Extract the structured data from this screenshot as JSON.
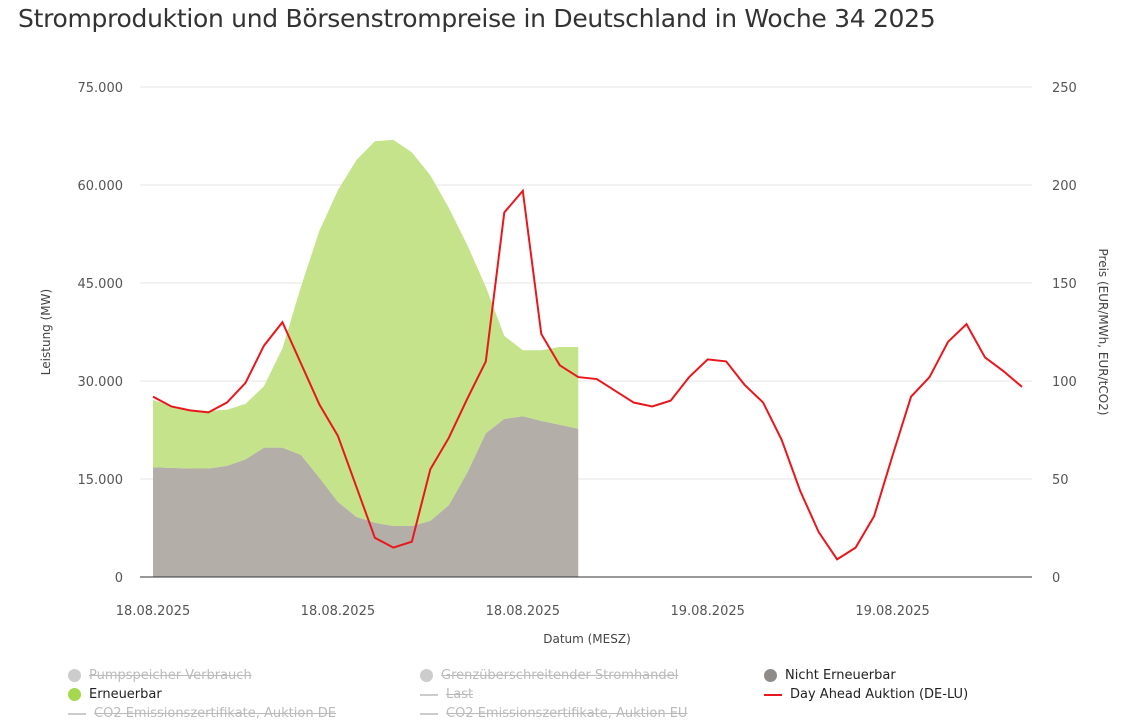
{
  "title": "Stromproduktion und Börsenstrompreise in Deutschland in Woche 34 2025",
  "chart_data": {
    "type": "area",
    "title": "Stromproduktion und Börsenstrompreise in Deutschland in Woche 34 2025",
    "xlabel": "Datum (MESZ)",
    "ylabel": "Leistung (MW)",
    "y2label": "Preis (EUR/MWh, EUR/tCO2)",
    "ylim": [
      0,
      75000
    ],
    "y2lim": [
      0,
      250
    ],
    "y_ticks": [
      "0",
      "15.000",
      "30.000",
      "45.000",
      "60.000",
      "75.000"
    ],
    "y_tick_values": [
      0,
      15000,
      30000,
      45000,
      60000,
      75000
    ],
    "y2_ticks": [
      "0",
      "50",
      "100",
      "150",
      "200",
      "250"
    ],
    "y2_tick_values": [
      0,
      50,
      100,
      150,
      200,
      250
    ],
    "x_hours_range": [
      0,
      47
    ],
    "x_ticks": [
      {
        "hour": 0,
        "label": "18.08.2025"
      },
      {
        "hour": 10,
        "label": "18.08.2025"
      },
      {
        "hour": 20,
        "label": "18.08.2025"
      },
      {
        "hour": 30,
        "label": "19.08.2025"
      },
      {
        "hour": 40,
        "label": "19.08.2025"
      }
    ],
    "grid": true,
    "legend_position": "bottom",
    "series": [
      {
        "name": "Nicht Erneuerbar",
        "kind": "area",
        "axis": "left",
        "color": "#b4aea9",
        "values": [
          16800,
          16700,
          16600,
          16600,
          17000,
          18000,
          19800,
          19800,
          18700,
          15200,
          11500,
          9200,
          8300,
          7800,
          7800,
          8600,
          11000,
          16000,
          22000,
          24200,
          24600,
          23900,
          23300,
          22700
        ]
      },
      {
        "name": "Erneuerbar",
        "kind": "area",
        "axis": "left",
        "color": "#c4e38a",
        "values": [
          10300,
          9500,
          9000,
          8800,
          8600,
          8500,
          9400,
          15200,
          25700,
          37800,
          47700,
          54600,
          58400,
          59100,
          57200,
          52900,
          45500,
          34800,
          22400,
          12700,
          10100,
          10800,
          11900,
          12500
        ]
      },
      {
        "name": "Day Ahead Auktion (DE-LU)",
        "kind": "line",
        "axis": "right",
        "color": "#e8171d",
        "values": [
          92,
          87,
          85,
          84,
          89,
          99,
          118,
          130,
          109,
          88,
          72,
          46,
          20,
          15,
          18,
          55,
          71,
          91,
          110,
          186,
          197,
          124,
          108,
          102,
          101,
          95,
          89,
          87,
          90,
          102,
          111,
          110,
          98,
          89,
          70,
          44,
          23,
          9,
          15,
          31,
          62,
          92,
          102,
          120,
          129,
          112,
          105,
          97
        ]
      }
    ]
  },
  "legend": [
    {
      "label": "Pumpspeicher Verbrauch",
      "active": false,
      "symbol": "dot",
      "color": "#cccccc"
    },
    {
      "label": "Grenzüberschreitender Stromhandel",
      "active": false,
      "symbol": "dot",
      "color": "#cccccc"
    },
    {
      "label": "Nicht Erneuerbar",
      "active": true,
      "symbol": "dot",
      "color": "#8f8b88"
    },
    {
      "label": "Erneuerbar",
      "active": true,
      "symbol": "dot",
      "color": "#a6d84f"
    },
    {
      "label": "Last",
      "active": false,
      "symbol": "line",
      "color": "#cccccc"
    },
    {
      "label": "Day Ahead Auktion (DE-LU)",
      "active": true,
      "symbol": "line",
      "color": "#e8171d"
    },
    {
      "label": "CO2 Emissionszertifikate, Auktion DE",
      "active": false,
      "symbol": "line",
      "color": "#cccccc"
    },
    {
      "label": "CO2 Emissionszertifikate, Auktion EU",
      "active": false,
      "symbol": "line",
      "color": "#cccccc"
    }
  ]
}
